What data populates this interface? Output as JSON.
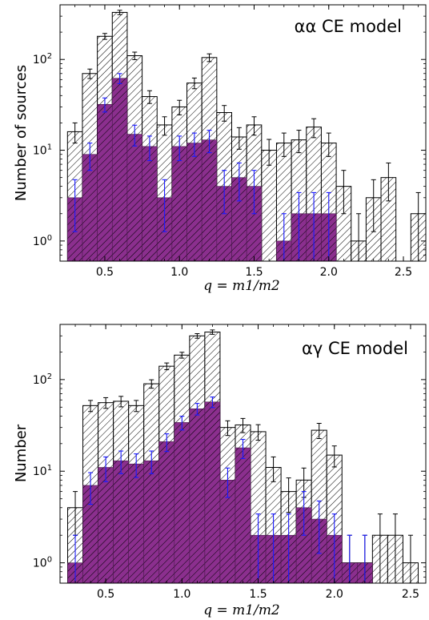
{
  "chart_data": [
    {
      "type": "bar",
      "subtype": "stacked-histogram",
      "annotation": "αα CE model",
      "xlabel": "q = m1/m2",
      "ylabel": "Number of sources",
      "yscale": "log",
      "xlim": [
        0.2,
        2.65
      ],
      "ylim": [
        0.6,
        400
      ],
      "xticks": [
        0.5,
        1.0,
        1.5,
        2.0,
        2.5
      ],
      "xtick_labels": [
        "0.5",
        "1.0",
        "1.5",
        "2.0",
        "2.5"
      ],
      "ytick_labels": [
        {
          "base": "10",
          "exp": "0"
        },
        {
          "base": "10",
          "exp": "1"
        },
        {
          "base": "10",
          "exp": "2"
        }
      ],
      "bin_width": 0.1,
      "series": [
        {
          "fill": "hatched-white",
          "bin_centers": [
            0.3,
            0.4,
            0.5,
            0.6,
            0.7,
            0.8,
            0.9,
            1.0,
            1.1,
            1.2,
            1.3,
            1.4,
            1.5,
            1.6,
            1.7,
            1.8,
            1.9,
            2.0,
            2.1,
            2.2,
            2.3,
            2.4,
            2.6
          ],
          "values": [
            16,
            70,
            180,
            330,
            110,
            39,
            19,
            30,
            55,
            105,
            26,
            14,
            19,
            10,
            12,
            13,
            18,
            12,
            4,
            1,
            3,
            5,
            2
          ]
        },
        {
          "fill": "purple-hatched",
          "bin_centers": [
            0.3,
            0.4,
            0.5,
            0.6,
            0.7,
            0.8,
            0.9,
            1.0,
            1.1,
            1.2,
            1.3,
            1.4,
            1.5,
            1.7,
            1.8,
            1.9,
            2.0
          ],
          "values": [
            3,
            9,
            32,
            62,
            15,
            11,
            3,
            11,
            12,
            13,
            4,
            5,
            4,
            1,
            2,
            2,
            2
          ]
        }
      ]
    },
    {
      "type": "bar",
      "subtype": "stacked-histogram",
      "annotation": "αγ CE model",
      "xlabel": "q = m1/m2",
      "ylabel": "Number",
      "yscale": "log",
      "xlim": [
        0.2,
        2.6
      ],
      "ylim": [
        0.6,
        400
      ],
      "xticks": [
        0.5,
        1.0,
        1.5,
        2.0,
        2.5
      ],
      "xtick_labels": [
        "0.5",
        "1.0",
        "1.5",
        "2.0",
        "2.5"
      ],
      "ytick_labels": [
        {
          "base": "10",
          "exp": "0"
        },
        {
          "base": "10",
          "exp": "1"
        },
        {
          "base": "10",
          "exp": "2"
        }
      ],
      "bin_width": 0.1,
      "series": [
        {
          "fill": "hatched-white",
          "bin_centers": [
            0.3,
            0.4,
            0.5,
            0.6,
            0.7,
            0.8,
            0.9,
            1.0,
            1.1,
            1.2,
            1.3,
            1.4,
            1.5,
            1.6,
            1.7,
            1.8,
            1.9,
            2.0,
            2.1,
            2.2,
            2.3,
            2.4,
            2.5
          ],
          "values": [
            4,
            52,
            56,
            58,
            52,
            90,
            140,
            185,
            300,
            330,
            30,
            32,
            27,
            11,
            6,
            8,
            28,
            15,
            1,
            1,
            2,
            2,
            1
          ]
        },
        {
          "fill": "purple-hatched",
          "bin_centers": [
            0.3,
            0.4,
            0.5,
            0.6,
            0.7,
            0.8,
            0.9,
            1.0,
            1.1,
            1.2,
            1.3,
            1.4,
            1.5,
            1.6,
            1.7,
            1.8,
            1.9,
            2.0,
            2.1,
            2.2
          ],
          "values": [
            1,
            7,
            11,
            13,
            12,
            13,
            21,
            34,
            48,
            57,
            8,
            18,
            2,
            2,
            2,
            4,
            3,
            2,
            1,
            1
          ]
        }
      ]
    }
  ]
}
